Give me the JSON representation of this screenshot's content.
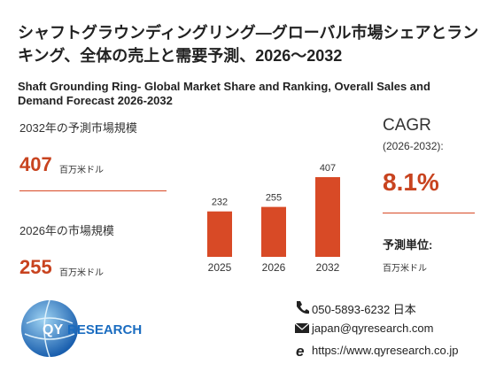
{
  "header": {
    "title": "シャフトグラウンディングリング—グローバル市場シェアとランキング、全体の売上と需要予測、2026～2032",
    "subtitle": "Shaft Grounding Ring- Global Market Share and Ranking, Overall Sales and Demand Forecast 2026-2032"
  },
  "left": {
    "forecast": {
      "label": "2032年の予測市場規模",
      "value": 407,
      "unit": "百万米ドル"
    },
    "current": {
      "label": "2026年の市場規模",
      "value": 255,
      "unit": "百万米ドル"
    }
  },
  "chart_data": {
    "type": "bar",
    "categories": [
      "2025",
      "2026",
      "2032"
    ],
    "values": [
      232,
      255,
      407
    ],
    "color": "#d84a26"
  },
  "right": {
    "cagr_title": "CAGR",
    "cagr_period": "(2026-2032):",
    "cagr_value": "8.1%",
    "unit_title": "予測単位:",
    "unit_value": "百万米ドル"
  },
  "logo": {
    "qy": "QY",
    "research": "RESEARCH"
  },
  "contact": {
    "phone": "050-5893-6232 日本",
    "email": "japan@qyresearch.com",
    "url": "https://www.qyresearch.co.jp"
  }
}
